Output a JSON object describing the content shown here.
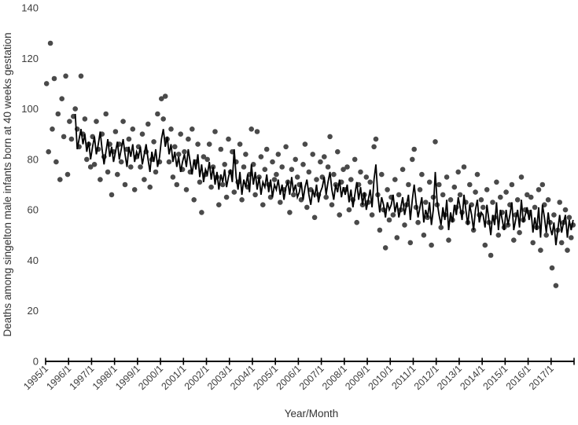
{
  "chart_data": {
    "type": "scatter",
    "title": "",
    "xlabel": "Year/Month",
    "ylabel": "Deaths among singelton male infants born at 40 weeks gestation",
    "ylim": [
      0,
      140
    ],
    "y_ticks": [
      0,
      20,
      40,
      60,
      80,
      100,
      120,
      140
    ],
    "x_tick_labels": [
      "1995/1",
      "1996/1",
      "1997/1",
      "1998/1",
      "1999/1",
      "2000/1",
      "2001/1",
      "2002/1",
      "2003/1",
      "2004/1",
      "2005/1",
      "2006/1",
      "2007/1",
      "2008/1",
      "2009/1",
      "2010/1",
      "2011/1",
      "2012/1",
      "2013/1",
      "2014/1",
      "2015/1",
      "2016/1",
      "2017/1"
    ],
    "x_axis_extra_end_tick": true,
    "x_range_months": [
      0,
      276
    ],
    "grid": false,
    "legend": "none",
    "colors": {
      "scatter": "#4a4a4a",
      "line": "#000000",
      "axis": "#000000"
    },
    "scatter_series": {
      "name": "monthly-deaths",
      "start_month_index": 0,
      "values": [
        110,
        83,
        126,
        92,
        112,
        79,
        98,
        72,
        104,
        89,
        113,
        74,
        95,
        88,
        97,
        100,
        92,
        85,
        113,
        90,
        96,
        80,
        86,
        77,
        89,
        78,
        95,
        84,
        72,
        90,
        81,
        98,
        75,
        86,
        66,
        83,
        91,
        74,
        86,
        79,
        95,
        70,
        84,
        88,
        77,
        92,
        68,
        81,
        85,
        77,
        90,
        72,
        83,
        94,
        69,
        80,
        87,
        75,
        98,
        79,
        104,
        96,
        105,
        88,
        79,
        92,
        73,
        85,
        70,
        82,
        90,
        76,
        83,
        68,
        88,
        75,
        92,
        64,
        79,
        86,
        71,
        59,
        81,
        74,
        80,
        86,
        69,
        77,
        91,
        73,
        62,
        84,
        70,
        78,
        65,
        88,
        75,
        83,
        67,
        79,
        71,
        86,
        64,
        77,
        82,
        69,
        74,
        92,
        78,
        66,
        91,
        73,
        81,
        62,
        76,
        84,
        70,
        65,
        79,
        72,
        74,
        82,
        63,
        77,
        68,
        85,
        71,
        59,
        76,
        66,
        80,
        73,
        70,
        64,
        78,
        86,
        61,
        75,
        68,
        82,
        57,
        72,
        66,
        79,
        73,
        81,
        65,
        77,
        89,
        62,
        74,
        70,
        83,
        58,
        71,
        76,
        68,
        77,
        60,
        72,
        64,
        80,
        55,
        70,
        75,
        62,
        66,
        73,
        63,
        71,
        58,
        85,
        88,
        66,
        52,
        74,
        60,
        45,
        68,
        56,
        65,
        58,
        72,
        49,
        66,
        60,
        76,
        54,
        62,
        70,
        47,
        80,
        84,
        61,
        55,
        68,
        74,
        50,
        63,
        57,
        71,
        46,
        65,
        87,
        62,
        70,
        53,
        66,
        58,
        73,
        48,
        64,
        56,
        69,
        61,
        75,
        66,
        59,
        77,
        63,
        55,
        70,
        62,
        52,
        67,
        74,
        58,
        64,
        61,
        46,
        68,
        55,
        42,
        63,
        57,
        71,
        50,
        65,
        59,
        53,
        67,
        54,
        62,
        70,
        48,
        58,
        64,
        51,
        73,
        56,
        60,
        66,
        59,
        65,
        47,
        61,
        53,
        68,
        44,
        70,
        62,
        50,
        64,
        55,
        37,
        58,
        30,
        52,
        63,
        47,
        55,
        60,
        44,
        57,
        49,
        54
      ]
    },
    "line_series": {
      "name": "smoothed-trend",
      "start_month_index": 15,
      "values": [
        98,
        84,
        88,
        92,
        86,
        90,
        83,
        87,
        80,
        85,
        89,
        82,
        86,
        91,
        84,
        78,
        83,
        88,
        81,
        85,
        79,
        83,
        87,
        80,
        84,
        88,
        82,
        77,
        85,
        81,
        86,
        79,
        83,
        81,
        85,
        78,
        82,
        86,
        80,
        75,
        83,
        79,
        84,
        77,
        81,
        88,
        92,
        85,
        89,
        82,
        86,
        79,
        83,
        77,
        81,
        75,
        79,
        82,
        77,
        84,
        79,
        74,
        80,
        76,
        82,
        73,
        78,
        71,
        76,
        74,
        79,
        72,
        77,
        70,
        75,
        68,
        74,
        71,
        76,
        69,
        73,
        76,
        71,
        84,
        73,
        68,
        75,
        66,
        72,
        69,
        74,
        67,
        78,
        70,
        75,
        68,
        73,
        66,
        71,
        69,
        74,
        67,
        72,
        65,
        70,
        68,
        72,
        66,
        70,
        64,
        69,
        71,
        66,
        73,
        67,
        70,
        65,
        67,
        71,
        64,
        69,
        72,
        66,
        62,
        68,
        65,
        70,
        63,
        67,
        69,
        73,
        66,
        71,
        75,
        68,
        64,
        70,
        67,
        72,
        65,
        69,
        66,
        70,
        63,
        68,
        61,
        66,
        71,
        64,
        69,
        62,
        67,
        60,
        64,
        68,
        61,
        72,
        78,
        66,
        59,
        65,
        62,
        57,
        63,
        60,
        62,
        66,
        59,
        63,
        57,
        61,
        65,
        58,
        62,
        66,
        56,
        64,
        70,
        63,
        57,
        61,
        65,
        55,
        60,
        57,
        63,
        54,
        60,
        75,
        63,
        58,
        54,
        61,
        56,
        64,
        52,
        59,
        55,
        62,
        58,
        65,
        61,
        56,
        66,
        60,
        54,
        62,
        58,
        52,
        60,
        64,
        55,
        59,
        58,
        53,
        62,
        56,
        50,
        58,
        54,
        63,
        52,
        60,
        56,
        52,
        60,
        54,
        58,
        63,
        52,
        56,
        60,
        53,
        64,
        55,
        58,
        61,
        56,
        60,
        51,
        57,
        52,
        61,
        49,
        62,
        57,
        51,
        59,
        53,
        50,
        55,
        46,
        52,
        58,
        51,
        55,
        58,
        49,
        56,
        52,
        56
      ]
    }
  }
}
